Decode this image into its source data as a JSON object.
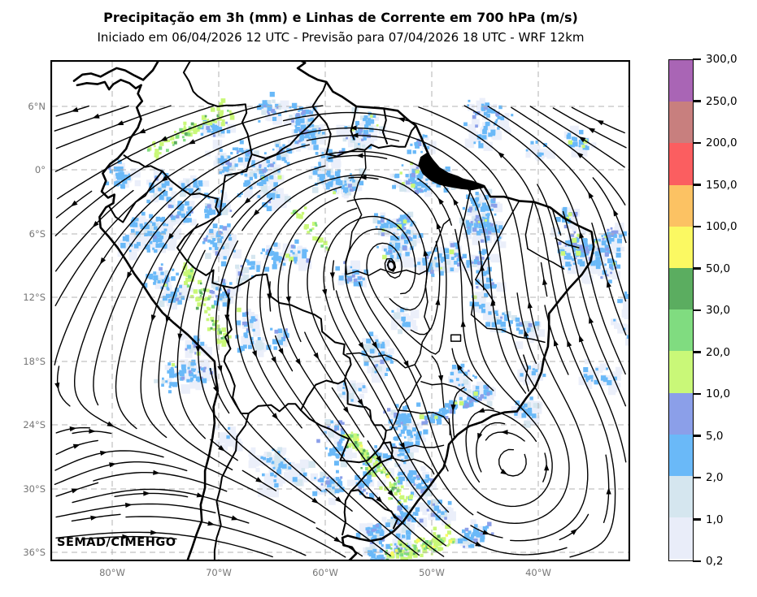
{
  "header": {
    "title": "Precipitação em 3h (mm) e Linhas de Corrente em 700 hPa (m/s)",
    "subtitle": "Iniciado em 06/04/2026 12 UTC - Previsão para 07/04/2026 18 UTC - WRF 12km"
  },
  "watermark": "SEMAD/CIMEHGO",
  "axes": {
    "lat_ticks": [
      "6°N",
      "0°",
      "6°S",
      "12°S",
      "18°S",
      "24°S",
      "30°S",
      "36°S"
    ],
    "lon_ticks": [
      "80°W",
      "70°W",
      "60°W",
      "50°W",
      "40°W"
    ]
  },
  "colorbar": {
    "tick_labels": [
      "300,0",
      "250,0",
      "200,0",
      "150,0",
      "100,0",
      "50,0",
      "30,0",
      "20,0",
      "10,0",
      "5,0",
      "2,0",
      "1,0",
      "0,2"
    ],
    "levels_mm": [
      0.2,
      1,
      2,
      5,
      10,
      20,
      30,
      50,
      100,
      150,
      200,
      250,
      300
    ],
    "colors_top_to_bottom": [
      "#a965b5",
      "#c87f7e",
      "#fb5e60",
      "#fcc263",
      "#fbf962",
      "#5bad60",
      "#80dc80",
      "#c9f878",
      "#8b9fe9",
      "#6ab9f8",
      "#d5e6ef",
      "#e9edf9"
    ]
  },
  "chart_data": {
    "type": "weather_map",
    "product": "3h accumulated precipitation (mm, shaded) with 700 hPa streamlines (m/s)",
    "model": "WRF 12km",
    "initialized": "06/04/2026 12 UTC",
    "valid": "07/04/2026 18 UTC",
    "region": "South America",
    "lon_range_deg": [
      -85.8,
      -31.4
    ],
    "lat_range_deg": [
      -36.9,
      10.4
    ],
    "grid": {
      "lat_lines": [
        6,
        0,
        -6,
        -12,
        -18,
        -24,
        -30,
        -36
      ],
      "lon_lines": [
        -80,
        -70,
        -60,
        -50,
        -40
      ],
      "style": "dashed gray"
    },
    "precip_scale_mm": [
      0.2,
      1,
      2,
      5,
      10,
      20,
      30,
      50,
      100,
      150,
      200,
      250,
      300
    ],
    "precip_features": [
      {
        "area": "NW Amazon / Colombia-Venezuela",
        "intensity_mm": "2-30 with embedded 10-20 mm bands"
      },
      {
        "area": "Western Amazon along Peru-Brazil border",
        "intensity_mm": "5-30"
      },
      {
        "area": "Band near 6S across eastern Amazon to NE coast",
        "intensity_mm": "2-10"
      },
      {
        "area": "NE Brazil coast (Ceara/RN)",
        "intensity_mm": "5-20"
      },
      {
        "area": "Sao Paulo coastal strip",
        "intensity_mm": "2-10"
      },
      {
        "area": "Southern Brazil (RS/SC) organized NW-SE band",
        "intensity_mm": "10-100"
      },
      {
        "area": "South of Rio de la Plata near 36S",
        "intensity_mm": "20-100"
      }
    ],
    "flow_features": [
      {
        "feature": "easterly flow just north of the Equator"
      },
      {
        "feature": "northward cross-equatorial flow over NE Brazil and adjacent Atlantic"
      },
      {
        "feature": "NW to SE flow from the Amazon toward Southeast Brazil"
      },
      {
        "feature": "anticyclonic (counterclockwise) gyre over the South Atlantic near 28S 46W"
      },
      {
        "feature": "westerlies over Argentina turning into southern Brazil"
      }
    ]
  }
}
